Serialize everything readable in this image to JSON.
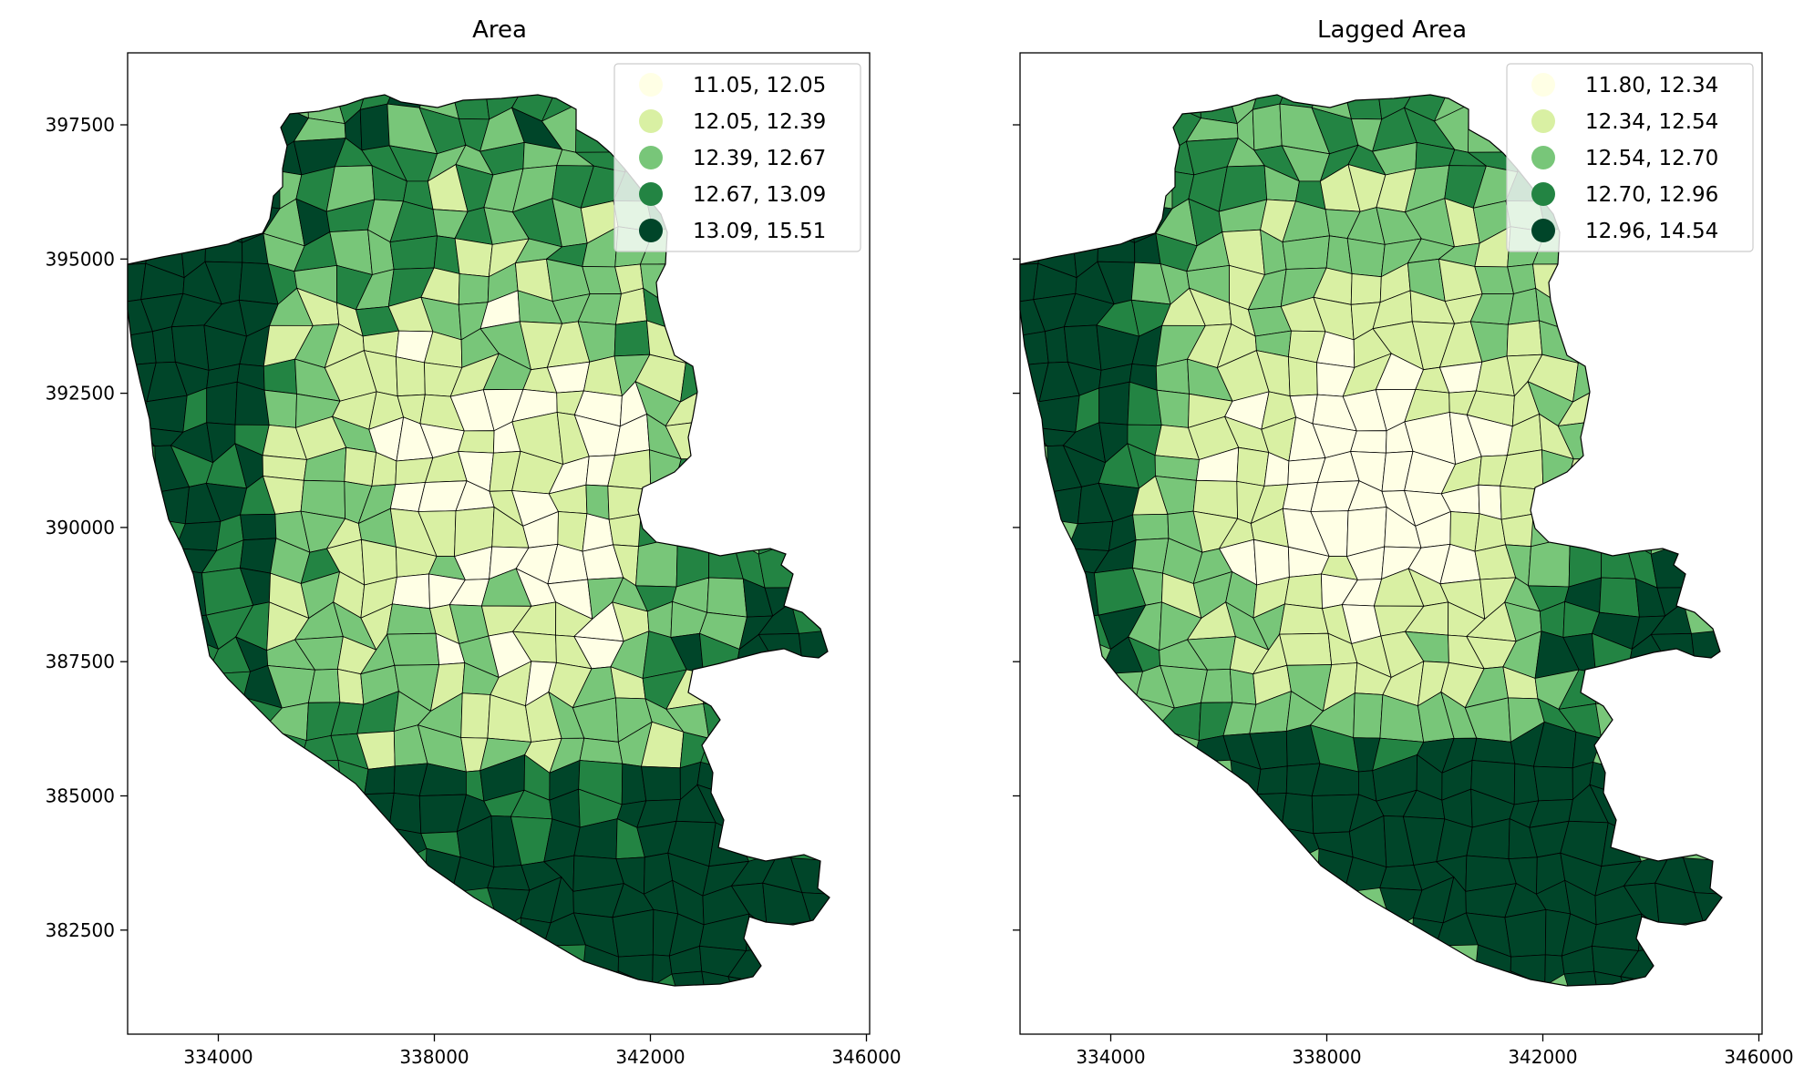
{
  "colors": {
    "class1": "#ffffe5",
    "class2": "#d9f0a3",
    "class3": "#78c679",
    "class4": "#238443",
    "class5": "#004529",
    "edge": "#000000",
    "background": "#ffffff"
  },
  "panels": [
    {
      "title": "Area",
      "xticks": [
        "334000",
        "338000",
        "342000",
        "346000"
      ],
      "yticks": [
        "397500",
        "395000",
        "392500",
        "390000",
        "387500",
        "385000",
        "382500"
      ],
      "show_ytick_labels": true,
      "legend": [
        "11.05, 12.05",
        "12.05, 12.39",
        "12.39, 12.67",
        "12.67, 13.09",
        "13.09, 15.51"
      ]
    },
    {
      "title": "Lagged Area",
      "xticks": [
        "334000",
        "338000",
        "342000",
        "346000"
      ],
      "yticks": [
        "397500",
        "395000",
        "392500",
        "390000",
        "387500",
        "385000",
        "382500"
      ],
      "show_ytick_labels": false,
      "legend": [
        "11.80, 12.34",
        "12.34, 12.54",
        "12.54, 12.70",
        "12.70, 12.96",
        "12.96, 14.54"
      ]
    }
  ],
  "chart_data": [
    {
      "type": "choropleth",
      "title": "Area",
      "x_range": [
        332700,
        346200
      ],
      "y_range": [
        380700,
        398900
      ],
      "classes": [
        {
          "label": "11.05, 12.05",
          "min": 11.05,
          "max": 12.05
        },
        {
          "label": "12.05, 12.39",
          "min": 12.05,
          "max": 12.39
        },
        {
          "label": "12.39, 12.67",
          "min": 12.39,
          "max": 12.67
        },
        {
          "label": "12.67, 13.09",
          "min": 12.67,
          "max": 13.09
        },
        {
          "label": "13.09, 15.51",
          "min": 13.09,
          "max": 15.51
        }
      ],
      "legend_position": "upper-right"
    },
    {
      "type": "choropleth",
      "title": "Lagged Area",
      "x_range": [
        332700,
        346200
      ],
      "y_range": [
        380700,
        398900
      ],
      "classes": [
        {
          "label": "11.80, 12.34",
          "min": 11.8,
          "max": 12.34
        },
        {
          "label": "12.34, 12.54",
          "min": 12.34,
          "max": 12.54
        },
        {
          "label": "12.54, 12.70",
          "min": 12.54,
          "max": 12.7
        },
        {
          "label": "12.70, 12.96",
          "min": 12.7,
          "max": 12.96
        },
        {
          "label": "12.96, 14.54",
          "min": 12.96,
          "max": 14.54
        }
      ],
      "legend_position": "upper-right"
    }
  ]
}
